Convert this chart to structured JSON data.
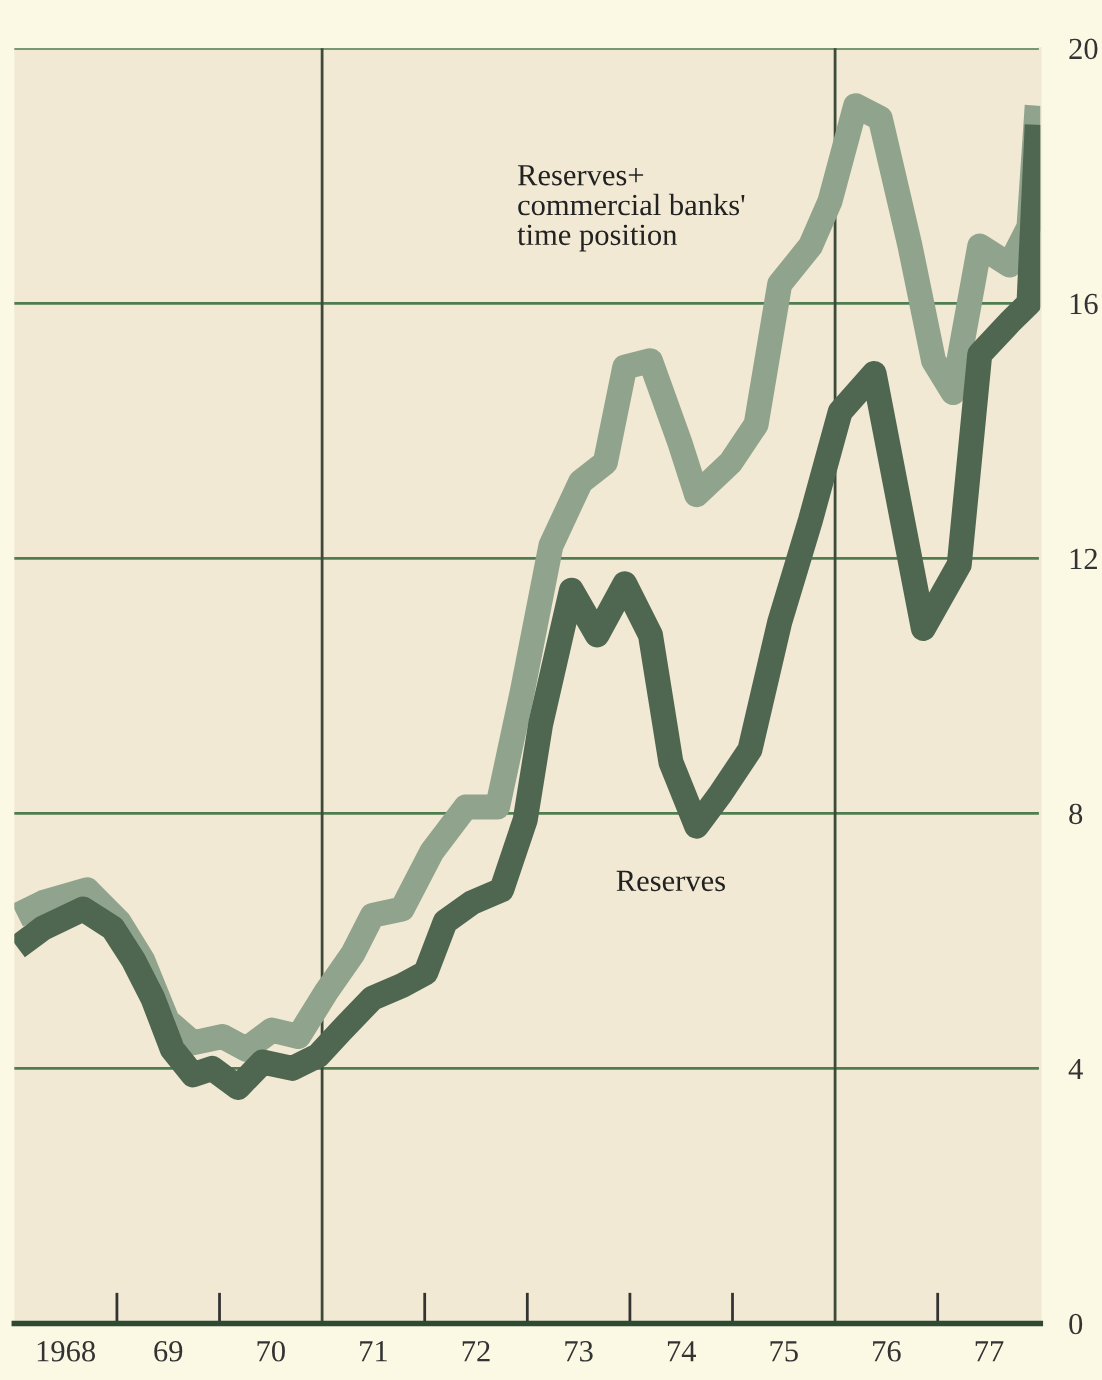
{
  "chart_data": {
    "type": "line",
    "xlim": [
      1967.5,
      1977.5
    ],
    "ylim": [
      0,
      20
    ],
    "xticks": [
      {
        "value": 1968,
        "label": "1968"
      },
      {
        "value": 1969,
        "label": "69"
      },
      {
        "value": 1970,
        "label": "70"
      },
      {
        "value": 1971,
        "label": "71"
      },
      {
        "value": 1972,
        "label": "72"
      },
      {
        "value": 1973,
        "label": "73"
      },
      {
        "value": 1974,
        "label": "74"
      },
      {
        "value": 1975,
        "label": "75"
      },
      {
        "value": 1976,
        "label": "76"
      },
      {
        "value": 1977,
        "label": "77"
      },
      {
        "value": 1968.5,
        "label": null
      },
      {
        "value": 1969.5,
        "label": null
      },
      {
        "value": 1971.5,
        "label": null
      },
      {
        "value": 1972.5,
        "label": null
      },
      {
        "value": 1973.5,
        "label": null
      },
      {
        "value": 1974.5,
        "label": null
      },
      {
        "value": 1976.5,
        "label": null
      }
    ],
    "yticks": [
      0,
      4,
      8,
      12,
      16,
      20
    ],
    "grid": "y",
    "marker": "none",
    "line_style": "solid",
    "ref_lines": [
      {
        "axis": "x",
        "value": 1970.5,
        "color": "#3d4a3a"
      },
      {
        "axis": "x",
        "value": 1975.5,
        "color": "#3d4a3a"
      }
    ],
    "series": [
      {
        "name": "Reserves+\ncommercial banks'\ntime position",
        "color": "#90a38c",
        "x": [
          1967.53,
          1967.78,
          1968.21,
          1968.52,
          1968.75,
          1968.99,
          1969.24,
          1969.53,
          1969.76,
          1970.01,
          1970.27,
          1970.54,
          1970.8,
          1970.99,
          1971.28,
          1971.57,
          1971.9,
          1972.21,
          1972.45,
          1972.73,
          1973.02,
          1973.26,
          1973.45,
          1973.7,
          1973.99,
          1974.15,
          1974.48,
          1974.73,
          1974.96,
          1975.26,
          1975.45,
          1975.7,
          1975.94,
          1976.23,
          1976.46,
          1976.65,
          1976.91,
          1977.2,
          1977.39,
          1977.47
        ],
        "values": [
          6.4,
          6.6,
          6.8,
          6.3,
          5.7,
          4.75,
          4.4,
          4.5,
          4.3,
          4.6,
          4.5,
          5.2,
          5.8,
          6.4,
          6.5,
          7.4,
          8.1,
          8.1,
          9.9,
          12.2,
          13.2,
          13.5,
          15.0,
          15.1,
          13.8,
          13.0,
          13.5,
          14.1,
          16.3,
          16.9,
          17.6,
          19.1,
          18.9,
          16.9,
          15.1,
          14.6,
          16.9,
          16.6,
          17.2,
          19.1
        ]
      },
      {
        "name": "Reserves",
        "color": "#4f6650",
        "x": [
          1967.53,
          1967.78,
          1968.17,
          1968.46,
          1968.66,
          1968.85,
          1969.04,
          1969.24,
          1969.43,
          1969.68,
          1969.92,
          1970.21,
          1970.46,
          1970.69,
          1970.99,
          1971.28,
          1971.51,
          1971.7,
          1971.96,
          1972.25,
          1972.48,
          1972.63,
          1972.93,
          1973.18,
          1973.45,
          1973.7,
          1973.9,
          1974.15,
          1974.38,
          1974.67,
          1974.96,
          1975.26,
          1975.55,
          1975.88,
          1976.36,
          1976.71,
          1976.91,
          1977.2,
          1977.39,
          1977.47
        ],
        "values": [
          5.9,
          6.2,
          6.5,
          6.2,
          5.7,
          5.1,
          4.3,
          3.9,
          4.0,
          3.7,
          4.1,
          4.0,
          4.2,
          4.6,
          5.1,
          5.3,
          5.5,
          6.3,
          6.6,
          6.8,
          7.9,
          9.4,
          11.5,
          10.8,
          11.6,
          10.8,
          8.8,
          7.8,
          8.3,
          9.0,
          11.0,
          12.6,
          14.3,
          14.9,
          10.9,
          11.9,
          15.2,
          15.7,
          16.0,
          18.8
        ]
      }
    ]
  }
}
